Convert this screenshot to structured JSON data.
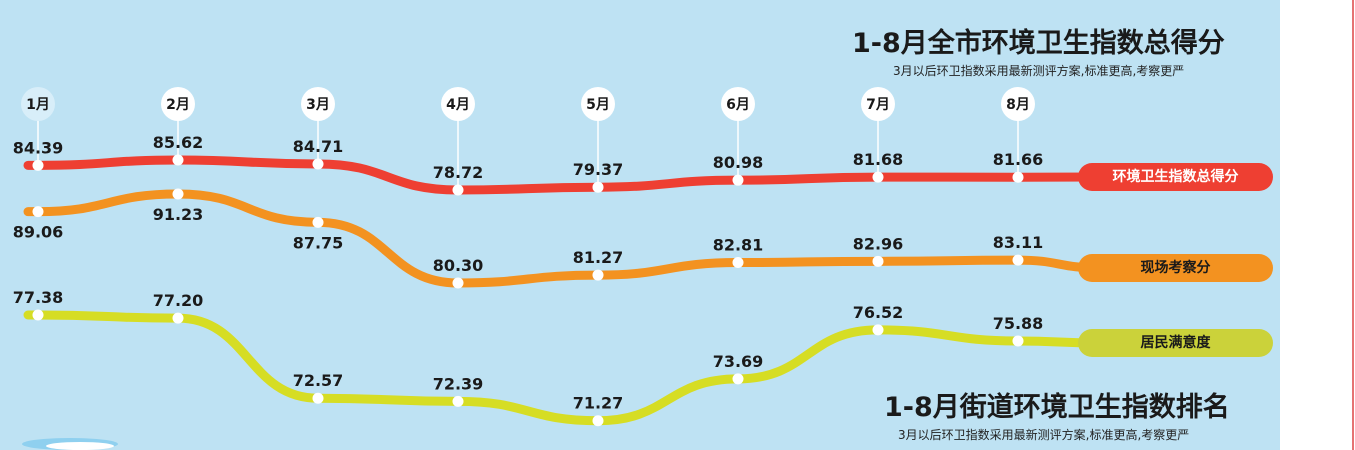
{
  "chart_data": {
    "type": "line",
    "title": "1-8月全市环境卫生指数总得分",
    "subtitle": "3月以后环卫指数采用最新测评方案,标准更高,考察更严",
    "categories": [
      "1月",
      "2月",
      "3月",
      "4月",
      "5月",
      "6月",
      "7月",
      "8月"
    ],
    "series": [
      {
        "name": "环境卫生指数总得分",
        "color": "#ee3f32",
        "values": [
          84.39,
          85.62,
          84.71,
          78.72,
          79.37,
          80.98,
          81.68,
          81.66
        ]
      },
      {
        "name": "现场考察分",
        "color": "#f39220",
        "values": [
          89.06,
          91.23,
          87.75,
          80.3,
          81.27,
          82.81,
          82.96,
          83.11
        ]
      },
      {
        "name": "居民满意度",
        "color": "#d6dd24",
        "values": [
          77.38,
          77.2,
          72.57,
          72.39,
          71.27,
          73.69,
          76.52,
          75.88
        ]
      }
    ],
    "legend": "right",
    "grid": false
  },
  "footer": {
    "title": "1-8月街道环境卫生指数排名",
    "subtitle": "3月以后环卫指数采用最新测评方案,标准更高,考察更严"
  }
}
